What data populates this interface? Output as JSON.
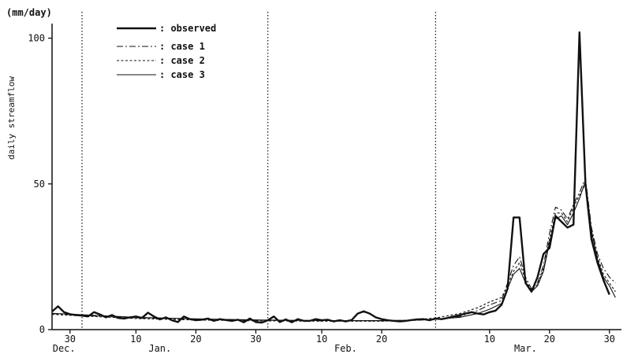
{
  "chart_data": {
    "type": "line",
    "ylabel": "daily streamflow",
    "y_unit": "(mm/day)",
    "ylim": [
      0,
      105
    ],
    "y_ticks": [
      0,
      50,
      100
    ],
    "x_domain": [
      "Dec. 27",
      "Apr. 1"
    ],
    "x_ticks": [
      {
        "label": "30",
        "date": "Dec. 30"
      },
      {
        "label": "10",
        "date": "Jan. 10"
      },
      {
        "label": "20",
        "date": "Jan. 20"
      },
      {
        "label": "30",
        "date": "Jan. 30"
      },
      {
        "label": "10",
        "date": "Feb. 10"
      },
      {
        "label": "20",
        "date": "Feb. 20"
      },
      {
        "label": "10",
        "date": "Mar. 10"
      },
      {
        "label": "20",
        "date": "Mar. 20"
      },
      {
        "label": "30",
        "date": "Mar. 30"
      }
    ],
    "month_labels": [
      {
        "label": "Dec.",
        "date": "Dec. 29"
      },
      {
        "label": "Jan.",
        "date": "Jan. 14"
      },
      {
        "label": "Feb.",
        "date": "Feb. 14"
      },
      {
        "label": "Mar.",
        "date": "Mar. 16"
      }
    ],
    "month_boundaries": [
      "Jan. 1",
      "Feb. 1",
      "Mar. 1"
    ],
    "legend": {
      "placement": "top-left"
    },
    "series": [
      {
        "name": ": observed",
        "style": "solid-thick",
        "points": [
          [
            "Dec. 27",
            6.2
          ],
          [
            "Dec. 28",
            8
          ],
          [
            "Dec. 29",
            6
          ],
          [
            "Dec. 30",
            5.3
          ],
          [
            "Dec. 31",
            5
          ],
          [
            "Jan. 1",
            4.8
          ],
          [
            "Jan. 2",
            4.5
          ],
          [
            "Jan. 3",
            6
          ],
          [
            "Jan. 4",
            5.2
          ],
          [
            "Jan. 5",
            4.2
          ],
          [
            "Jan. 6",
            5
          ],
          [
            "Jan. 7",
            4
          ],
          [
            "Jan. 8",
            3.8
          ],
          [
            "Jan. 9",
            4.2
          ],
          [
            "Jan. 10",
            4.5
          ],
          [
            "Jan. 11",
            4
          ],
          [
            "Jan. 12",
            5.8
          ],
          [
            "Jan. 13",
            4.5
          ],
          [
            "Jan. 14",
            3.5
          ],
          [
            "Jan. 15",
            4.2
          ],
          [
            "Jan. 16",
            3.2
          ],
          [
            "Jan. 17",
            2.6
          ],
          [
            "Jan. 18",
            4.5
          ],
          [
            "Jan. 19",
            3.6
          ],
          [
            "Jan. 20",
            3.2
          ],
          [
            "Jan. 21",
            3.4
          ],
          [
            "Jan. 22",
            3.8
          ],
          [
            "Jan. 23",
            3
          ],
          [
            "Jan. 24",
            3.6
          ],
          [
            "Jan. 25",
            3.3
          ],
          [
            "Jan. 26",
            3
          ],
          [
            "Jan. 27",
            3.4
          ],
          [
            "Jan. 28",
            2.5
          ],
          [
            "Jan. 29",
            3.8
          ],
          [
            "Jan. 30",
            2.6
          ],
          [
            "Jan. 31",
            2.4
          ],
          [
            "Feb. 1",
            3.2
          ],
          [
            "Feb. 2",
            4.5
          ],
          [
            "Feb. 3",
            2.6
          ],
          [
            "Feb. 4",
            3.5
          ],
          [
            "Feb. 5",
            2.5
          ],
          [
            "Feb. 6",
            3.6
          ],
          [
            "Feb. 7",
            3
          ],
          [
            "Feb. 8",
            3
          ],
          [
            "Feb. 9",
            3.6
          ],
          [
            "Feb. 10",
            3.2
          ],
          [
            "Feb. 11",
            3.4
          ],
          [
            "Feb. 12",
            2.8
          ],
          [
            "Feb. 13",
            3.2
          ],
          [
            "Feb. 14",
            2.8
          ],
          [
            "Feb. 15",
            3.3
          ],
          [
            "Feb. 16",
            5.5
          ],
          [
            "Feb. 17",
            6.3
          ],
          [
            "Feb. 18",
            5.5
          ],
          [
            "Feb. 19",
            4.2
          ],
          [
            "Feb. 20",
            3.6
          ],
          [
            "Feb. 21",
            3.2
          ],
          [
            "Feb. 22",
            3
          ],
          [
            "Feb. 23",
            2.8
          ],
          [
            "Feb. 24",
            3
          ],
          [
            "Feb. 25",
            3.3
          ],
          [
            "Feb. 26",
            3.5
          ],
          [
            "Feb. 27",
            3.6
          ],
          [
            "Feb. 28",
            3.2
          ],
          [
            "Mar. 1",
            3.8
          ],
          [
            "Mar. 2",
            3.6
          ],
          [
            "Mar. 3",
            4
          ],
          [
            "Mar. 4",
            4.5
          ],
          [
            "Mar. 5",
            5
          ],
          [
            "Mar. 6",
            5.5
          ],
          [
            "Mar. 7",
            6
          ],
          [
            "Mar. 8",
            5.5
          ],
          [
            "Mar. 9",
            5.2
          ],
          [
            "Mar. 10",
            6
          ],
          [
            "Mar. 11",
            6.5
          ],
          [
            "Mar. 12",
            8.5
          ],
          [
            "Mar. 13",
            14
          ],
          [
            "Mar. 14",
            38.5
          ],
          [
            "Mar. 15",
            38.5
          ],
          [
            "Mar. 16",
            16
          ],
          [
            "Mar. 17",
            13
          ],
          [
            "Mar. 18",
            18
          ],
          [
            "Mar. 19",
            26
          ],
          [
            "Mar. 20",
            28
          ],
          [
            "Mar. 21",
            39
          ],
          [
            "Mar. 22",
            37
          ],
          [
            "Mar. 23",
            35
          ],
          [
            "Mar. 24",
            36
          ],
          [
            "Mar. 25",
            102
          ],
          [
            "Mar. 26",
            50
          ],
          [
            "Mar. 27",
            31
          ],
          [
            "Mar. 28",
            23
          ],
          [
            "Mar. 29",
            17
          ],
          [
            "Mar. 30",
            12
          ]
        ]
      },
      {
        "name": ": case 1",
        "style": "dashdot",
        "points": [
          [
            "Dec. 27",
            5.5
          ],
          [
            "Dec. 31",
            5
          ],
          [
            "Jan. 10",
            4
          ],
          [
            "Jan. 20",
            3.6
          ],
          [
            "Jan. 31",
            3.2
          ],
          [
            "Feb. 10",
            3
          ],
          [
            "Feb. 20",
            3
          ],
          [
            "Feb. 25",
            3.1
          ],
          [
            "Mar. 1",
            3.5
          ],
          [
            "Mar. 5",
            4.5
          ],
          [
            "Mar. 8",
            6.5
          ],
          [
            "Mar. 10",
            8.5
          ],
          [
            "Mar. 12",
            10
          ],
          [
            "Mar. 13",
            16
          ],
          [
            "Mar. 14",
            22
          ],
          [
            "Mar. 15",
            25
          ],
          [
            "Mar. 16",
            18
          ],
          [
            "Mar. 17",
            14
          ],
          [
            "Mar. 18",
            16
          ],
          [
            "Mar. 19",
            22
          ],
          [
            "Mar. 20",
            33
          ],
          [
            "Mar. 21",
            42
          ],
          [
            "Mar. 22",
            41
          ],
          [
            "Mar. 23",
            38
          ],
          [
            "Mar. 24",
            43
          ],
          [
            "Mar. 25",
            47
          ],
          [
            "Mar. 26",
            52
          ],
          [
            "Mar. 27",
            35
          ],
          [
            "Mar. 28",
            26
          ],
          [
            "Mar. 29",
            21
          ],
          [
            "Mar. 30",
            18
          ],
          [
            "Mar. 31",
            16
          ]
        ]
      },
      {
        "name": ": case 2",
        "style": "dotted",
        "points": [
          [
            "Dec. 27",
            5.2
          ],
          [
            "Dec. 31",
            4.8
          ],
          [
            "Jan. 10",
            3.8
          ],
          [
            "Jan. 20",
            3.3
          ],
          [
            "Jan. 31",
            3
          ],
          [
            "Feb. 10",
            2.9
          ],
          [
            "Feb. 20",
            2.9
          ],
          [
            "Feb. 25",
            3.2
          ],
          [
            "Mar. 1",
            4
          ],
          [
            "Mar. 5",
            5.5
          ],
          [
            "Mar. 8",
            7.5
          ],
          [
            "Mar. 10",
            9.5
          ],
          [
            "Mar. 12",
            11
          ],
          [
            "Mar. 13",
            15
          ],
          [
            "Mar. 14",
            20
          ],
          [
            "Mar. 15",
            23
          ],
          [
            "Mar. 16",
            17
          ],
          [
            "Mar. 17",
            13.5
          ],
          [
            "Mar. 18",
            15.5
          ],
          [
            "Mar. 19",
            21
          ],
          [
            "Mar. 20",
            31
          ],
          [
            "Mar. 21",
            40
          ],
          [
            "Mar. 22",
            40
          ],
          [
            "Mar. 23",
            37
          ],
          [
            "Mar. 24",
            42
          ],
          [
            "Mar. 25",
            46
          ],
          [
            "Mar. 26",
            50
          ],
          [
            "Mar. 27",
            33
          ],
          [
            "Mar. 28",
            25
          ],
          [
            "Mar. 29",
            19
          ],
          [
            "Mar. 30",
            16
          ],
          [
            "Mar. 31",
            13
          ]
        ]
      },
      {
        "name": ": case 3",
        "style": "solid-thin",
        "points": [
          [
            "Dec. 27",
            5.6
          ],
          [
            "Dec. 31",
            5.2
          ],
          [
            "Jan. 10",
            4.2
          ],
          [
            "Jan. 20",
            3.7
          ],
          [
            "Jan. 31",
            3.3
          ],
          [
            "Feb. 10",
            3.1
          ],
          [
            "Feb. 20",
            3.1
          ],
          [
            "Feb. 25",
            3.2
          ],
          [
            "Mar. 1",
            3.6
          ],
          [
            "Mar. 5",
            4.2
          ],
          [
            "Mar. 8",
            5.5
          ],
          [
            "Mar. 10",
            7
          ],
          [
            "Mar. 12",
            9
          ],
          [
            "Mar. 13",
            14
          ],
          [
            "Mar. 14",
            19
          ],
          [
            "Mar. 15",
            21
          ],
          [
            "Mar. 16",
            16
          ],
          [
            "Mar. 17",
            13
          ],
          [
            "Mar. 18",
            15
          ],
          [
            "Mar. 19",
            20
          ],
          [
            "Mar. 20",
            30
          ],
          [
            "Mar. 21",
            38
          ],
          [
            "Mar. 22",
            39
          ],
          [
            "Mar. 23",
            36
          ],
          [
            "Mar. 24",
            40
          ],
          [
            "Mar. 25",
            45
          ],
          [
            "Mar. 26",
            51
          ],
          [
            "Mar. 27",
            34
          ],
          [
            "Mar. 28",
            24
          ],
          [
            "Mar. 29",
            18
          ],
          [
            "Mar. 30",
            15
          ],
          [
            "Mar. 31",
            11
          ]
        ]
      }
    ]
  }
}
